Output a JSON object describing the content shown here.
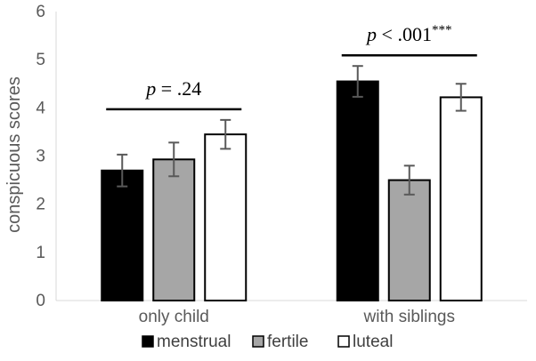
{
  "chart_data": {
    "type": "bar",
    "categories": [
      "only child",
      "with siblings"
    ],
    "series": [
      {
        "name": "menstrual",
        "color": "#000000",
        "values": [
          2.7,
          4.55
        ],
        "errors": [
          0.33,
          0.32
        ]
      },
      {
        "name": "fertile",
        "color": "#a6a6a6",
        "values": [
          2.93,
          2.5
        ],
        "errors": [
          0.35,
          0.3
        ]
      },
      {
        "name": "luteal",
        "color": "#ffffff",
        "values": [
          3.45,
          4.22
        ],
        "errors": [
          0.3,
          0.28
        ]
      }
    ],
    "ylabel": "conspicuous scores",
    "ylim": [
      0,
      6
    ],
    "yticks": [
      "0",
      "1",
      "2",
      "3",
      "4",
      "5",
      "6"
    ],
    "grid": false,
    "legend_position": "bottom",
    "annotations": [
      {
        "category": "only child",
        "italic": "p",
        "text": " = .24",
        "stars": ""
      },
      {
        "category": "with siblings",
        "italic": "p",
        "text": " < .001",
        "stars": "***"
      }
    ]
  }
}
